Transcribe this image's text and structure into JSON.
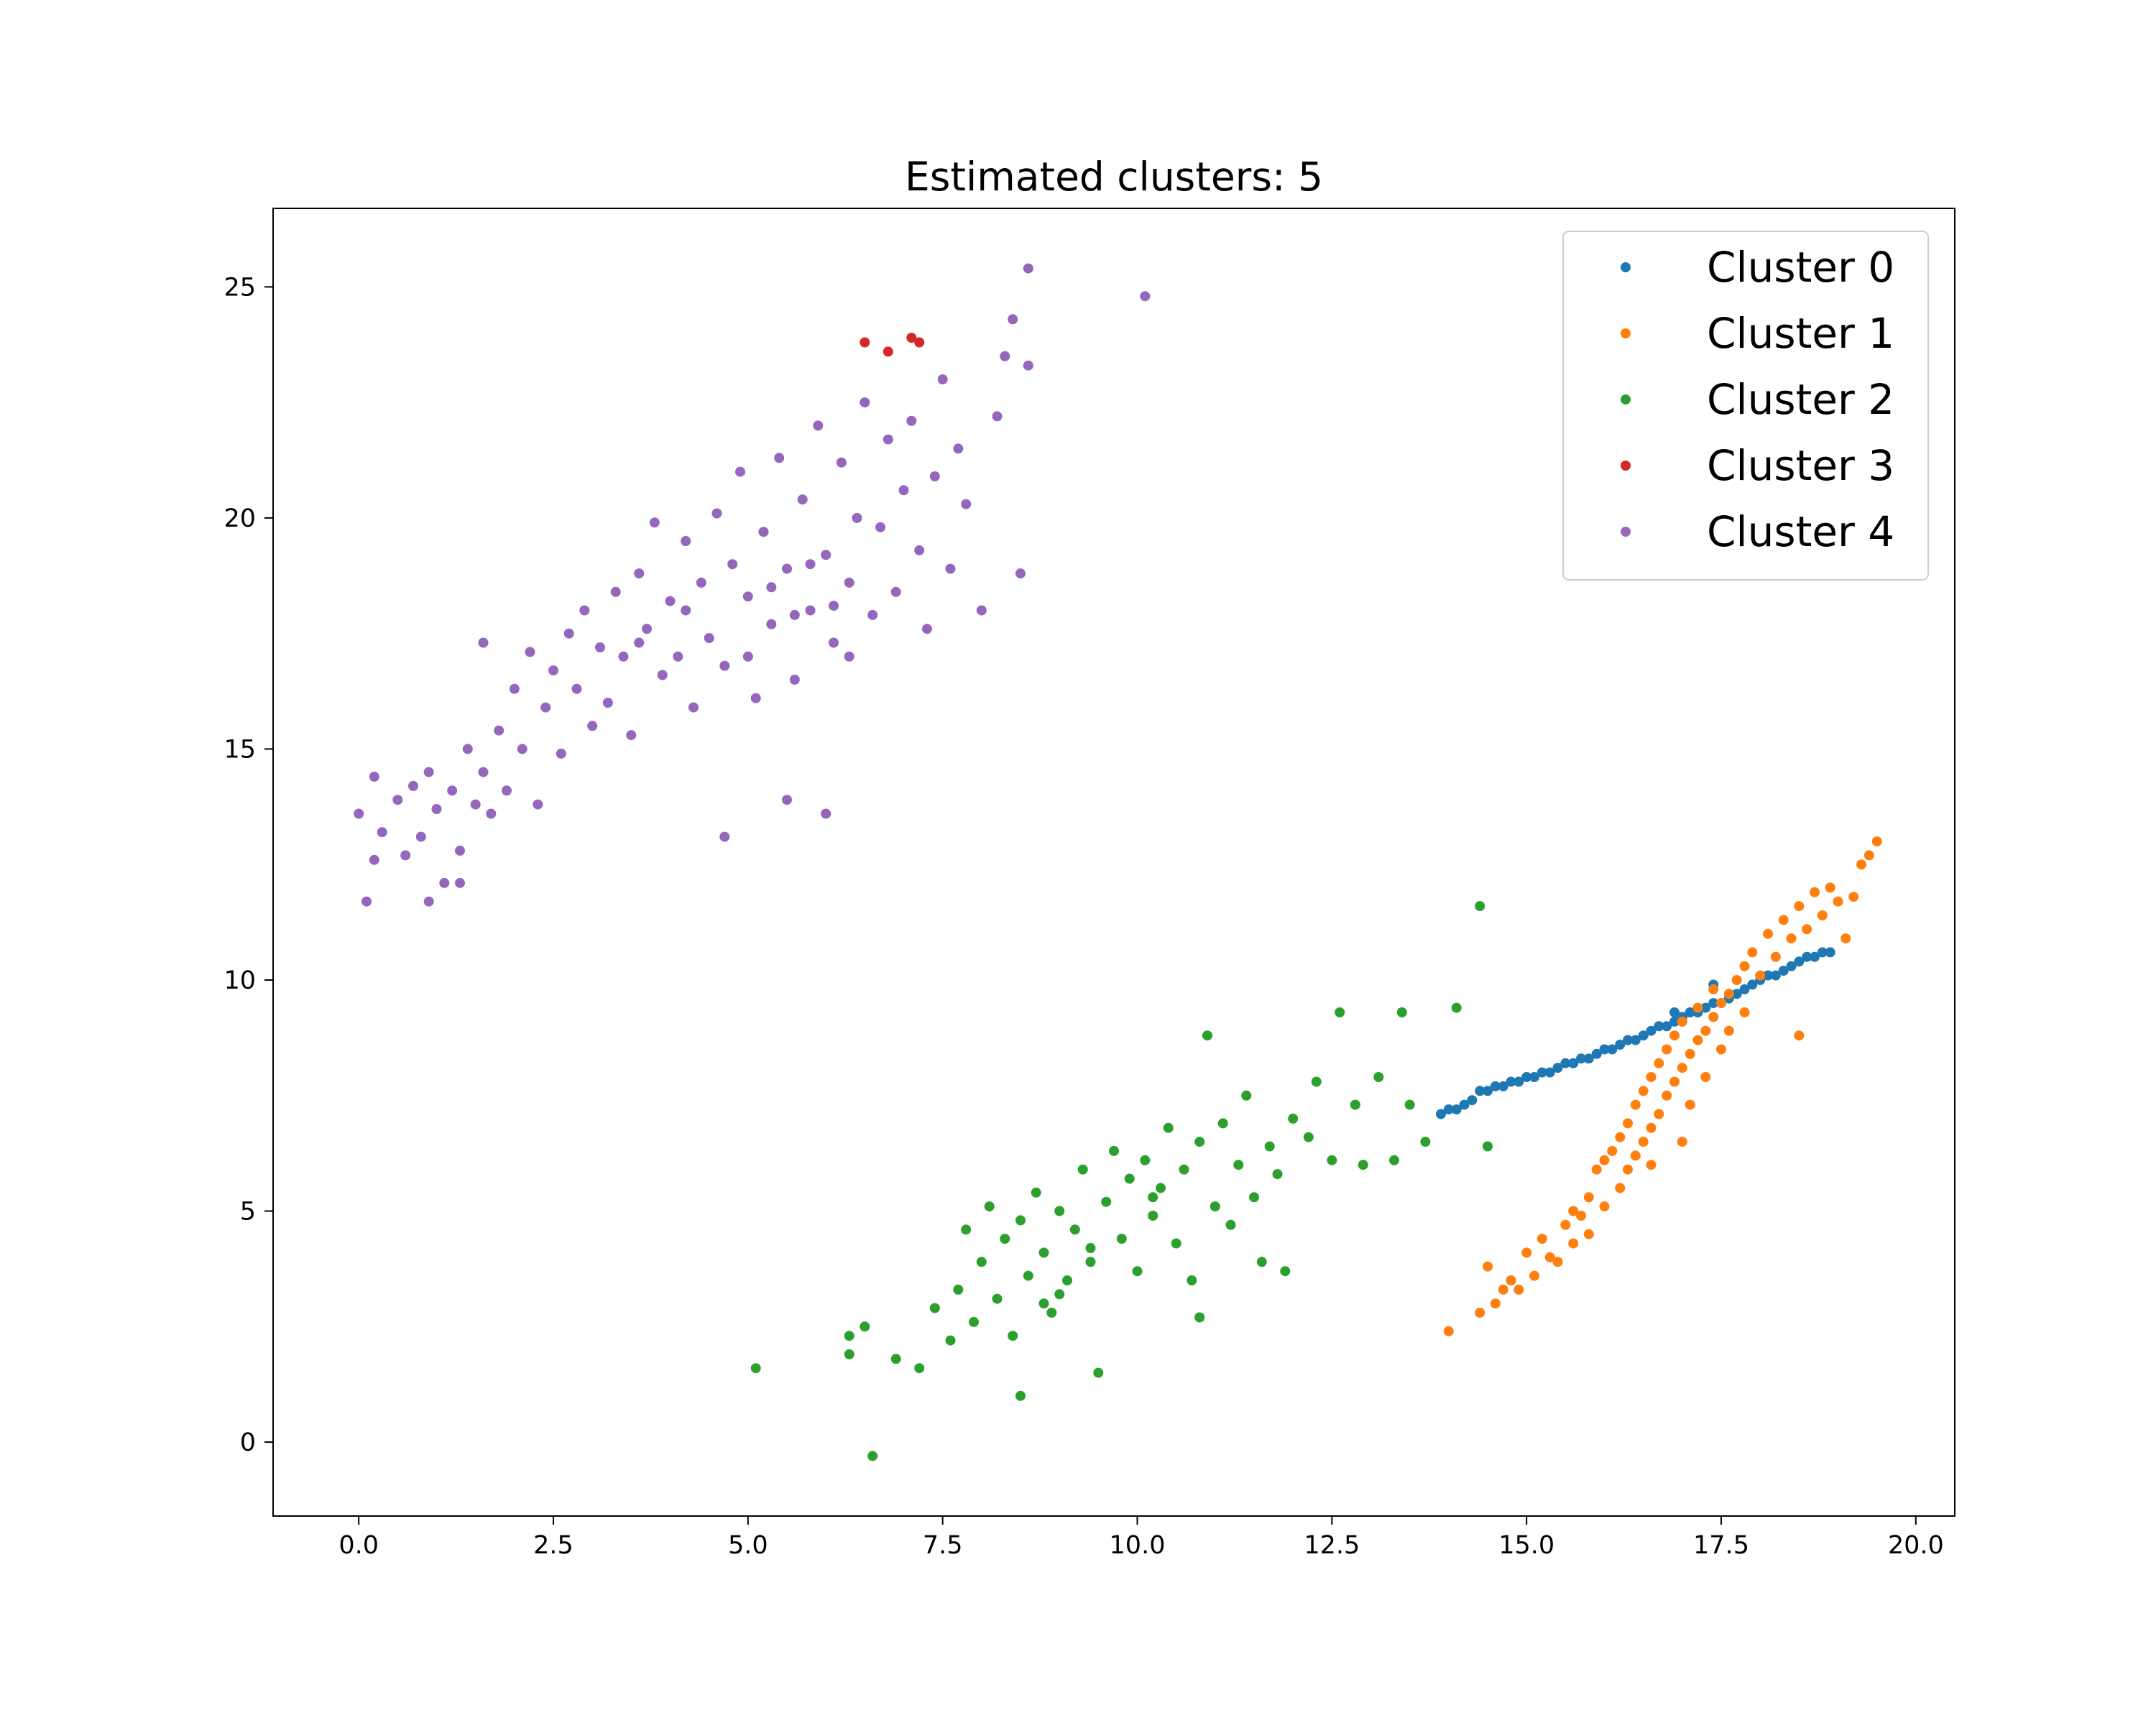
{
  "chart_data": {
    "type": "scatter",
    "title": "Estimated clusters: 5",
    "xlabel": "",
    "ylabel": "",
    "xlim": [
      -1.1,
      20.5
    ],
    "ylim": [
      -1.6,
      26.7
    ],
    "xticks": [
      0.0,
      2.5,
      5.0,
      7.5,
      10.0,
      12.5,
      15.0,
      17.5,
      20.0
    ],
    "xtick_labels": [
      "0.0",
      "2.5",
      "5.0",
      "7.5",
      "10.0",
      "12.5",
      "15.0",
      "17.5",
      "20.0"
    ],
    "yticks": [
      0,
      5,
      10,
      15,
      20,
      25
    ],
    "ytick_labels": [
      "0",
      "5",
      "10",
      "15",
      "20",
      "25"
    ],
    "grid": false,
    "legend_position": "top-right",
    "series": [
      {
        "name": "Cluster 0",
        "color": "#1f77b4",
        "points": [
          [
            13.9,
            7.1
          ],
          [
            14.0,
            7.2
          ],
          [
            14.1,
            7.2
          ],
          [
            14.2,
            7.3
          ],
          [
            14.3,
            7.4
          ],
          [
            14.4,
            7.6
          ],
          [
            14.5,
            7.6
          ],
          [
            14.6,
            7.7
          ],
          [
            14.7,
            7.7
          ],
          [
            14.8,
            7.8
          ],
          [
            14.9,
            7.8
          ],
          [
            15.0,
            7.9
          ],
          [
            15.1,
            7.9
          ],
          [
            15.2,
            8.0
          ],
          [
            15.3,
            8.0
          ],
          [
            15.4,
            8.1
          ],
          [
            15.5,
            8.2
          ],
          [
            15.6,
            8.2
          ],
          [
            15.7,
            8.3
          ],
          [
            15.8,
            8.3
          ],
          [
            15.9,
            8.4
          ],
          [
            16.0,
            8.5
          ],
          [
            16.1,
            8.5
          ],
          [
            16.2,
            8.6
          ],
          [
            16.3,
            8.7
          ],
          [
            16.4,
            8.7
          ],
          [
            16.5,
            8.8
          ],
          [
            16.6,
            8.9
          ],
          [
            16.7,
            9.0
          ],
          [
            16.8,
            9.0
          ],
          [
            16.9,
            9.1
          ],
          [
            17.0,
            9.2
          ],
          [
            17.1,
            9.3
          ],
          [
            17.2,
            9.3
          ],
          [
            17.3,
            9.4
          ],
          [
            17.4,
            9.5
          ],
          [
            17.5,
            9.5
          ],
          [
            17.6,
            9.6
          ],
          [
            17.7,
            9.7
          ],
          [
            17.8,
            9.8
          ],
          [
            17.9,
            9.9
          ],
          [
            18.0,
            10.0
          ],
          [
            18.1,
            10.1
          ],
          [
            18.2,
            10.1
          ],
          [
            18.3,
            10.2
          ],
          [
            18.4,
            10.3
          ],
          [
            18.5,
            10.4
          ],
          [
            18.6,
            10.5
          ],
          [
            18.7,
            10.5
          ],
          [
            18.8,
            10.6
          ],
          [
            18.9,
            10.6
          ],
          [
            17.4,
            9.9
          ],
          [
            16.9,
            9.3
          ]
        ]
      },
      {
        "name": "Cluster 1",
        "color": "#ff7f0e",
        "points": [
          [
            14.0,
            2.4
          ],
          [
            14.4,
            2.8
          ],
          [
            14.6,
            3.0
          ],
          [
            14.7,
            3.3
          ],
          [
            14.5,
            3.8
          ],
          [
            14.8,
            3.5
          ],
          [
            14.9,
            3.3
          ],
          [
            15.0,
            4.1
          ],
          [
            15.1,
            3.6
          ],
          [
            15.2,
            4.4
          ],
          [
            15.3,
            4.0
          ],
          [
            15.4,
            3.9
          ],
          [
            15.5,
            4.7
          ],
          [
            15.6,
            4.3
          ],
          [
            15.6,
            5.0
          ],
          [
            15.7,
            4.9
          ],
          [
            15.8,
            5.3
          ],
          [
            15.9,
            5.9
          ],
          [
            16.0,
            6.1
          ],
          [
            16.0,
            5.1
          ],
          [
            16.1,
            6.3
          ],
          [
            16.2,
            6.6
          ],
          [
            16.2,
            5.5
          ],
          [
            16.3,
            5.9
          ],
          [
            16.3,
            6.9
          ],
          [
            16.4,
            6.2
          ],
          [
            16.4,
            7.3
          ],
          [
            16.5,
            6.5
          ],
          [
            16.5,
            7.6
          ],
          [
            16.6,
            6.8
          ],
          [
            16.6,
            7.9
          ],
          [
            16.7,
            7.1
          ],
          [
            16.7,
            8.2
          ],
          [
            16.8,
            7.5
          ],
          [
            16.8,
            8.5
          ],
          [
            16.9,
            7.8
          ],
          [
            16.9,
            8.8
          ],
          [
            17.0,
            8.1
          ],
          [
            17.0,
            9.1
          ],
          [
            17.1,
            8.4
          ],
          [
            17.1,
            7.3
          ],
          [
            17.2,
            8.7
          ],
          [
            17.2,
            9.4
          ],
          [
            17.3,
            8.9
          ],
          [
            17.3,
            7.9
          ],
          [
            17.4,
            9.2
          ],
          [
            17.4,
            9.8
          ],
          [
            17.5,
            9.5
          ],
          [
            17.5,
            8.5
          ],
          [
            17.6,
            9.7
          ],
          [
            17.6,
            8.9
          ],
          [
            17.7,
            10.0
          ],
          [
            17.8,
            10.3
          ],
          [
            17.8,
            9.3
          ],
          [
            17.9,
            10.6
          ],
          [
            18.0,
            10.1
          ],
          [
            18.1,
            11.0
          ],
          [
            18.2,
            10.5
          ],
          [
            18.3,
            11.3
          ],
          [
            18.4,
            10.9
          ],
          [
            18.5,
            11.6
          ],
          [
            18.6,
            11.1
          ],
          [
            18.7,
            11.9
          ],
          [
            18.8,
            11.4
          ],
          [
            18.9,
            12.0
          ],
          [
            19.0,
            11.7
          ],
          [
            19.1,
            10.9
          ],
          [
            19.2,
            11.8
          ],
          [
            19.3,
            12.5
          ],
          [
            19.4,
            12.7
          ],
          [
            19.5,
            13.0
          ],
          [
            18.5,
            8.8
          ],
          [
            17.0,
            6.5
          ],
          [
            16.6,
            6.0
          ],
          [
            15.8,
            4.5
          ]
        ]
      },
      {
        "name": "Cluster 2",
        "color": "#2ca02c",
        "points": [
          [
            5.1,
            1.6
          ],
          [
            6.3,
            1.9
          ],
          [
            6.5,
            2.5
          ],
          [
            6.3,
            2.3
          ],
          [
            6.9,
            1.8
          ],
          [
            7.2,
            1.6
          ],
          [
            7.4,
            2.9
          ],
          [
            7.6,
            2.2
          ],
          [
            7.7,
            3.3
          ],
          [
            7.8,
            4.6
          ],
          [
            7.9,
            2.6
          ],
          [
            8.0,
            3.9
          ],
          [
            8.1,
            5.1
          ],
          [
            8.2,
            3.1
          ],
          [
            8.3,
            4.4
          ],
          [
            8.4,
            2.3
          ],
          [
            8.5,
            4.8
          ],
          [
            8.5,
            1.0
          ],
          [
            8.6,
            3.6
          ],
          [
            8.7,
            5.4
          ],
          [
            8.8,
            4.1
          ],
          [
            8.9,
            2.8
          ],
          [
            9.0,
            5.0
          ],
          [
            9.1,
            3.5
          ],
          [
            9.2,
            4.6
          ],
          [
            9.3,
            5.9
          ],
          [
            9.4,
            3.9
          ],
          [
            9.5,
            1.5
          ],
          [
            9.6,
            5.2
          ],
          [
            9.7,
            6.3
          ],
          [
            9.8,
            4.4
          ],
          [
            9.9,
            5.7
          ],
          [
            10.0,
            3.7
          ],
          [
            10.1,
            6.1
          ],
          [
            10.2,
            4.9
          ],
          [
            10.3,
            5.5
          ],
          [
            10.4,
            6.8
          ],
          [
            10.5,
            4.3
          ],
          [
            10.6,
            5.9
          ],
          [
            10.7,
            3.5
          ],
          [
            10.8,
            6.5
          ],
          [
            10.9,
            8.8
          ],
          [
            11.0,
            5.1
          ],
          [
            11.1,
            6.9
          ],
          [
            11.2,
            4.7
          ],
          [
            11.3,
            6.0
          ],
          [
            11.4,
            7.5
          ],
          [
            11.5,
            5.3
          ],
          [
            11.6,
            3.9
          ],
          [
            11.7,
            6.4
          ],
          [
            11.8,
            5.8
          ],
          [
            11.9,
            3.7
          ],
          [
            12.0,
            7.0
          ],
          [
            12.2,
            6.6
          ],
          [
            12.3,
            7.8
          ],
          [
            12.5,
            6.1
          ],
          [
            12.6,
            9.3
          ],
          [
            12.8,
            7.3
          ],
          [
            12.9,
            6.0
          ],
          [
            13.1,
            7.9
          ],
          [
            13.3,
            6.1
          ],
          [
            13.4,
            9.3
          ],
          [
            13.5,
            7.3
          ],
          [
            13.7,
            6.5
          ],
          [
            14.1,
            9.4
          ],
          [
            14.4,
            11.6
          ],
          [
            14.5,
            6.4
          ],
          [
            6.6,
            -0.3
          ],
          [
            9.0,
            3.2
          ],
          [
            10.8,
            2.7
          ],
          [
            8.8,
            3.0
          ],
          [
            9.4,
            4.2
          ],
          [
            10.2,
            5.3
          ]
        ]
      },
      {
        "name": "Cluster 3",
        "color": "#d62728",
        "points": [
          [
            6.5,
            23.8
          ],
          [
            6.8,
            23.6
          ],
          [
            7.1,
            23.9
          ],
          [
            7.2,
            23.8
          ]
        ]
      },
      {
        "name": "Cluster 4",
        "color": "#9467bd",
        "points": [
          [
            0.0,
            13.6
          ],
          [
            0.1,
            11.7
          ],
          [
            0.2,
            14.4
          ],
          [
            0.2,
            12.6
          ],
          [
            0.3,
            13.2
          ],
          [
            0.5,
            13.9
          ],
          [
            0.6,
            12.7
          ],
          [
            0.7,
            14.2
          ],
          [
            0.8,
            13.1
          ],
          [
            0.9,
            11.7
          ],
          [
            0.9,
            14.5
          ],
          [
            1.0,
            13.7
          ],
          [
            1.1,
            12.1
          ],
          [
            1.2,
            14.1
          ],
          [
            1.3,
            12.8
          ],
          [
            1.4,
            15.0
          ],
          [
            1.5,
            13.8
          ],
          [
            1.6,
            14.5
          ],
          [
            1.6,
            17.3
          ],
          [
            1.7,
            13.6
          ],
          [
            1.8,
            15.4
          ],
          [
            1.9,
            14.1
          ],
          [
            2.0,
            16.3
          ],
          [
            2.1,
            15.0
          ],
          [
            2.2,
            17.1
          ],
          [
            2.3,
            13.8
          ],
          [
            2.4,
            15.9
          ],
          [
            2.5,
            16.7
          ],
          [
            2.6,
            14.9
          ],
          [
            2.7,
            17.5
          ],
          [
            2.8,
            16.3
          ],
          [
            2.9,
            18.0
          ],
          [
            3.0,
            15.5
          ],
          [
            3.1,
            17.2
          ],
          [
            3.2,
            16.0
          ],
          [
            3.3,
            18.4
          ],
          [
            3.4,
            17.0
          ],
          [
            3.5,
            15.3
          ],
          [
            3.6,
            18.8
          ],
          [
            3.7,
            17.6
          ],
          [
            3.8,
            19.9
          ],
          [
            3.9,
            16.6
          ],
          [
            4.0,
            18.2
          ],
          [
            4.1,
            17.0
          ],
          [
            4.2,
            19.5
          ],
          [
            4.3,
            15.9
          ],
          [
            4.4,
            18.6
          ],
          [
            4.5,
            17.4
          ],
          [
            4.6,
            20.1
          ],
          [
            4.7,
            16.8
          ],
          [
            4.8,
            19.0
          ],
          [
            4.9,
            21.0
          ],
          [
            5.0,
            18.3
          ],
          [
            5.1,
            16.1
          ],
          [
            5.2,
            19.7
          ],
          [
            5.3,
            17.7
          ],
          [
            5.4,
            21.3
          ],
          [
            5.5,
            18.9
          ],
          [
            5.6,
            16.5
          ],
          [
            5.7,
            20.4
          ],
          [
            5.8,
            18.0
          ],
          [
            5.9,
            22.0
          ],
          [
            6.0,
            19.2
          ],
          [
            6.1,
            17.3
          ],
          [
            6.2,
            21.2
          ],
          [
            6.3,
            18.6
          ],
          [
            6.4,
            20.0
          ],
          [
            6.5,
            22.5
          ],
          [
            6.6,
            17.9
          ],
          [
            6.7,
            19.8
          ],
          [
            6.8,
            21.7
          ],
          [
            6.9,
            18.4
          ],
          [
            7.0,
            20.6
          ],
          [
            7.1,
            22.1
          ],
          [
            7.2,
            19.3
          ],
          [
            7.3,
            17.6
          ],
          [
            7.4,
            20.9
          ],
          [
            7.5,
            23.0
          ],
          [
            7.6,
            18.9
          ],
          [
            7.7,
            21.5
          ],
          [
            7.8,
            20.3
          ],
          [
            8.0,
            18.0
          ],
          [
            8.2,
            22.2
          ],
          [
            8.3,
            23.5
          ],
          [
            8.4,
            24.3
          ],
          [
            8.5,
            18.8
          ],
          [
            8.6,
            23.3
          ],
          [
            8.6,
            25.4
          ],
          [
            10.1,
            24.8
          ],
          [
            4.7,
            13.1
          ],
          [
            5.5,
            13.9
          ],
          [
            6.0,
            13.6
          ],
          [
            1.3,
            12.1
          ],
          [
            5.0,
            17.0
          ],
          [
            5.3,
            18.5
          ],
          [
            5.8,
            19.0
          ],
          [
            6.1,
            18.1
          ],
          [
            6.3,
            17.0
          ],
          [
            5.6,
            17.9
          ],
          [
            4.2,
            18.0
          ],
          [
            3.6,
            17.3
          ]
        ]
      }
    ]
  }
}
